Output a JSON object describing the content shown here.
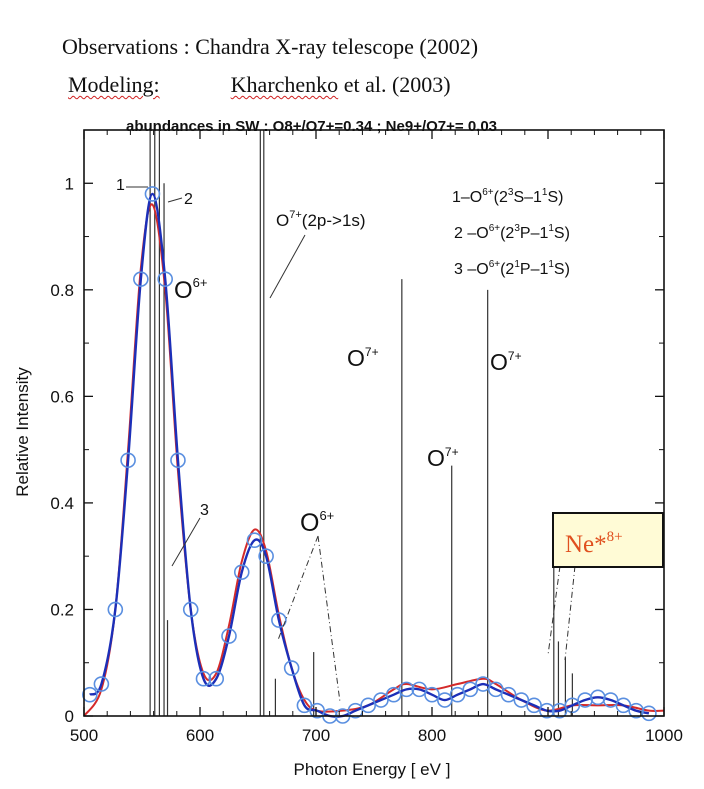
{
  "header": {
    "line1": "Observations : Chandra X-ray telescope (2002)",
    "line2_label": "Modeling:",
    "line2_author": "Kharchenko",
    "line2_rest": "et al. (2003)",
    "abundances": "abundances in SW : O8+/O7+=0.34 ; Ne9+/O7+= 0.03"
  },
  "chart_data": {
    "type": "line",
    "xlabel": "Photon Energy [ eV ]",
    "ylabel": "Relative Intensity",
    "xlim": [
      500,
      1000
    ],
    "ylim": [
      0,
      1.1
    ],
    "x_ticks": [
      500,
      600,
      700,
      800,
      900,
      1000
    ],
    "y_ticks": [
      0,
      0.2,
      0.4,
      0.6,
      0.8,
      1
    ],
    "y_tick_labels": [
      "0",
      "0.2",
      "0.4",
      "0.6",
      "0.8",
      "1"
    ],
    "grid": false,
    "colors": {
      "blue": "#1c2fb8",
      "red": "#d42a2a",
      "lines": "#333333",
      "marker": "#5a8fe0"
    },
    "series": [
      {
        "style": "blue-line-with-circles",
        "x": [
          505,
          515,
          527,
          538,
          549,
          559,
          570,
          581,
          592,
          603,
          614,
          625,
          636,
          647,
          657,
          668,
          679,
          690,
          701,
          712,
          723,
          734,
          745,
          756,
          767,
          778,
          789,
          800,
          811,
          822,
          833,
          844,
          855,
          866,
          877,
          888,
          899,
          910,
          921,
          932,
          943,
          954,
          965,
          976,
          987
        ],
        "y": [
          0.04,
          0.06,
          0.2,
          0.48,
          0.82,
          0.98,
          0.82,
          0.48,
          0.2,
          0.07,
          0.07,
          0.15,
          0.27,
          0.33,
          0.3,
          0.18,
          0.09,
          0.02,
          0.01,
          0.0,
          0.0,
          0.01,
          0.02,
          0.03,
          0.04,
          0.05,
          0.05,
          0.04,
          0.03,
          0.04,
          0.05,
          0.06,
          0.05,
          0.04,
          0.03,
          0.02,
          0.01,
          0.01,
          0.02,
          0.03,
          0.035,
          0.03,
          0.02,
          0.01,
          0.005
        ]
      },
      {
        "style": "red-line",
        "x": [
          500,
          515,
          527,
          538,
          549,
          559,
          570,
          581,
          592,
          603,
          614,
          625,
          636,
          647,
          657,
          668,
          679,
          690,
          701,
          723,
          745,
          767,
          778,
          800,
          822,
          844,
          855,
          877,
          899,
          921,
          943,
          965,
          987,
          1000
        ],
        "y": [
          0.0,
          0.05,
          0.2,
          0.5,
          0.84,
          0.96,
          0.8,
          0.46,
          0.2,
          0.08,
          0.08,
          0.17,
          0.29,
          0.35,
          0.31,
          0.19,
          0.09,
          0.03,
          0.01,
          0.01,
          0.02,
          0.05,
          0.06,
          0.05,
          0.06,
          0.07,
          0.06,
          0.03,
          0.01,
          0.02,
          0.02,
          0.02,
          0.01,
          0.01
        ]
      }
    ],
    "emission_lines": [
      {
        "x": 557,
        "y": 1.2
      },
      {
        "x": 561,
        "y": 1.2
      },
      {
        "x": 565,
        "y": 1.2
      },
      {
        "x": 569,
        "y": 1.0
      },
      {
        "x": 572,
        "y": 0.18
      },
      {
        "x": 652,
        "y": 1.2
      },
      {
        "x": 655,
        "y": 1.2
      },
      {
        "x": 665,
        "y": 0.07
      },
      {
        "x": 698,
        "y": 0.12
      },
      {
        "x": 774,
        "y": 0.82
      },
      {
        "x": 817,
        "y": 0.47
      },
      {
        "x": 848,
        "y": 0.8
      },
      {
        "x": 905,
        "y": 0.32
      },
      {
        "x": 909,
        "y": 0.14
      },
      {
        "x": 915,
        "y": 0.11
      },
      {
        "x": 921,
        "y": 0.08
      }
    ],
    "annotations": {
      "label_1": "1",
      "label_2": "2",
      "label_3": "3",
      "o6_main": "O",
      "o6_main_sup": "6+",
      "o7_2p1s": "O",
      "o7_2p1s_sup": "7+",
      "o7_2p1s_rest": "(2p->1s)",
      "o6_mid": "O",
      "o6_mid_sup": "6+",
      "o7_a": "O",
      "o7_a_sup": "7+",
      "o7_b": "O",
      "o7_b_sup": "7+",
      "o7_c": "O",
      "o7_c_sup": "7+",
      "legend_1": {
        "pre": "1–O",
        "sup1": "6+",
        "mid1": "(2",
        "sup2": "3",
        "mid2": "S–1",
        "sup3": "1",
        "post": "S)"
      },
      "legend_2": {
        "pre": "2 –O",
        "sup1": "6+",
        "mid1": "(2",
        "sup2": "3",
        "mid2": "P–1",
        "sup3": "1",
        "post": "S)"
      },
      "legend_3": {
        "pre": "3 –O",
        "sup1": "6+",
        "mid1": "(2",
        "sup2": "1",
        "mid2": "P–1",
        "sup3": "1",
        "post": "S)"
      },
      "ne_box": "Ne*",
      "ne_box_sup": "8+"
    }
  }
}
